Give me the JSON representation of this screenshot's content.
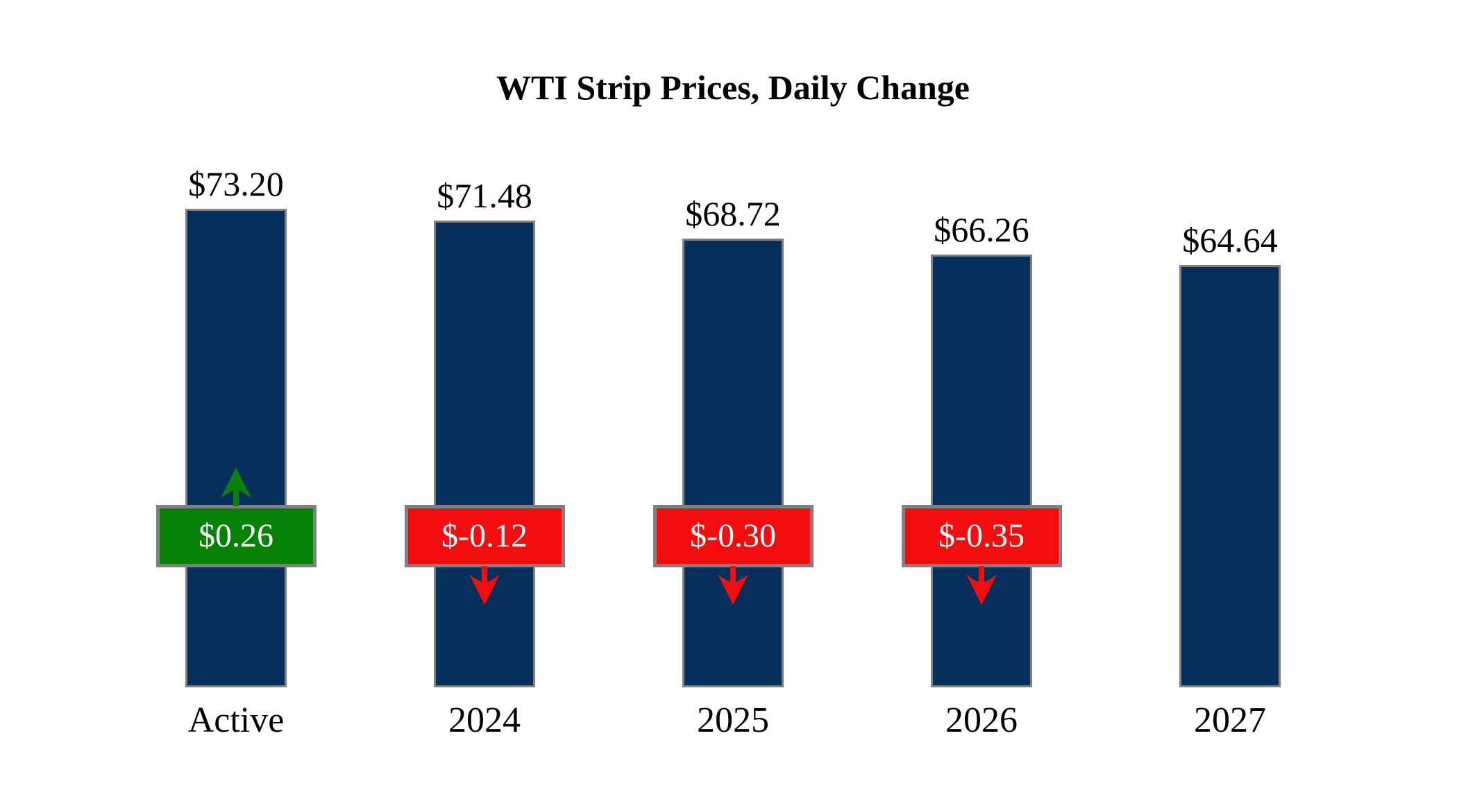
{
  "title": "WTI Strip Prices, Daily Change",
  "colors": {
    "background": "#ffffff",
    "bar_fill": "#062f5c",
    "bar_border": "#808080",
    "positive": "#078207",
    "negative": "#f20e0e",
    "badge_border": "#808080",
    "badge_text": "#ffffff",
    "text": "#000000"
  },
  "chart_data": {
    "type": "bar",
    "title": "WTI Strip Prices, Daily Change",
    "categories": [
      "Active",
      "2024",
      "2025",
      "2026",
      "2027"
    ],
    "values": [
      73.2,
      71.48,
      68.72,
      66.26,
      64.64
    ],
    "value_labels": [
      "$73.20",
      "$71.48",
      "$68.72",
      "$66.26",
      "$64.64"
    ],
    "changes": [
      0.26,
      -0.12,
      -0.3,
      -0.35,
      null
    ],
    "change_labels": [
      "$0.26",
      "$-0.12",
      "$-0.30",
      "$-0.35",
      null
    ],
    "xlabel": "",
    "ylabel": "",
    "ylim": [
      0,
      78
    ],
    "grid": false,
    "legend": false,
    "bar_label_position": "above",
    "change_badge_row": "fixed-height overlay centered on each bar"
  }
}
